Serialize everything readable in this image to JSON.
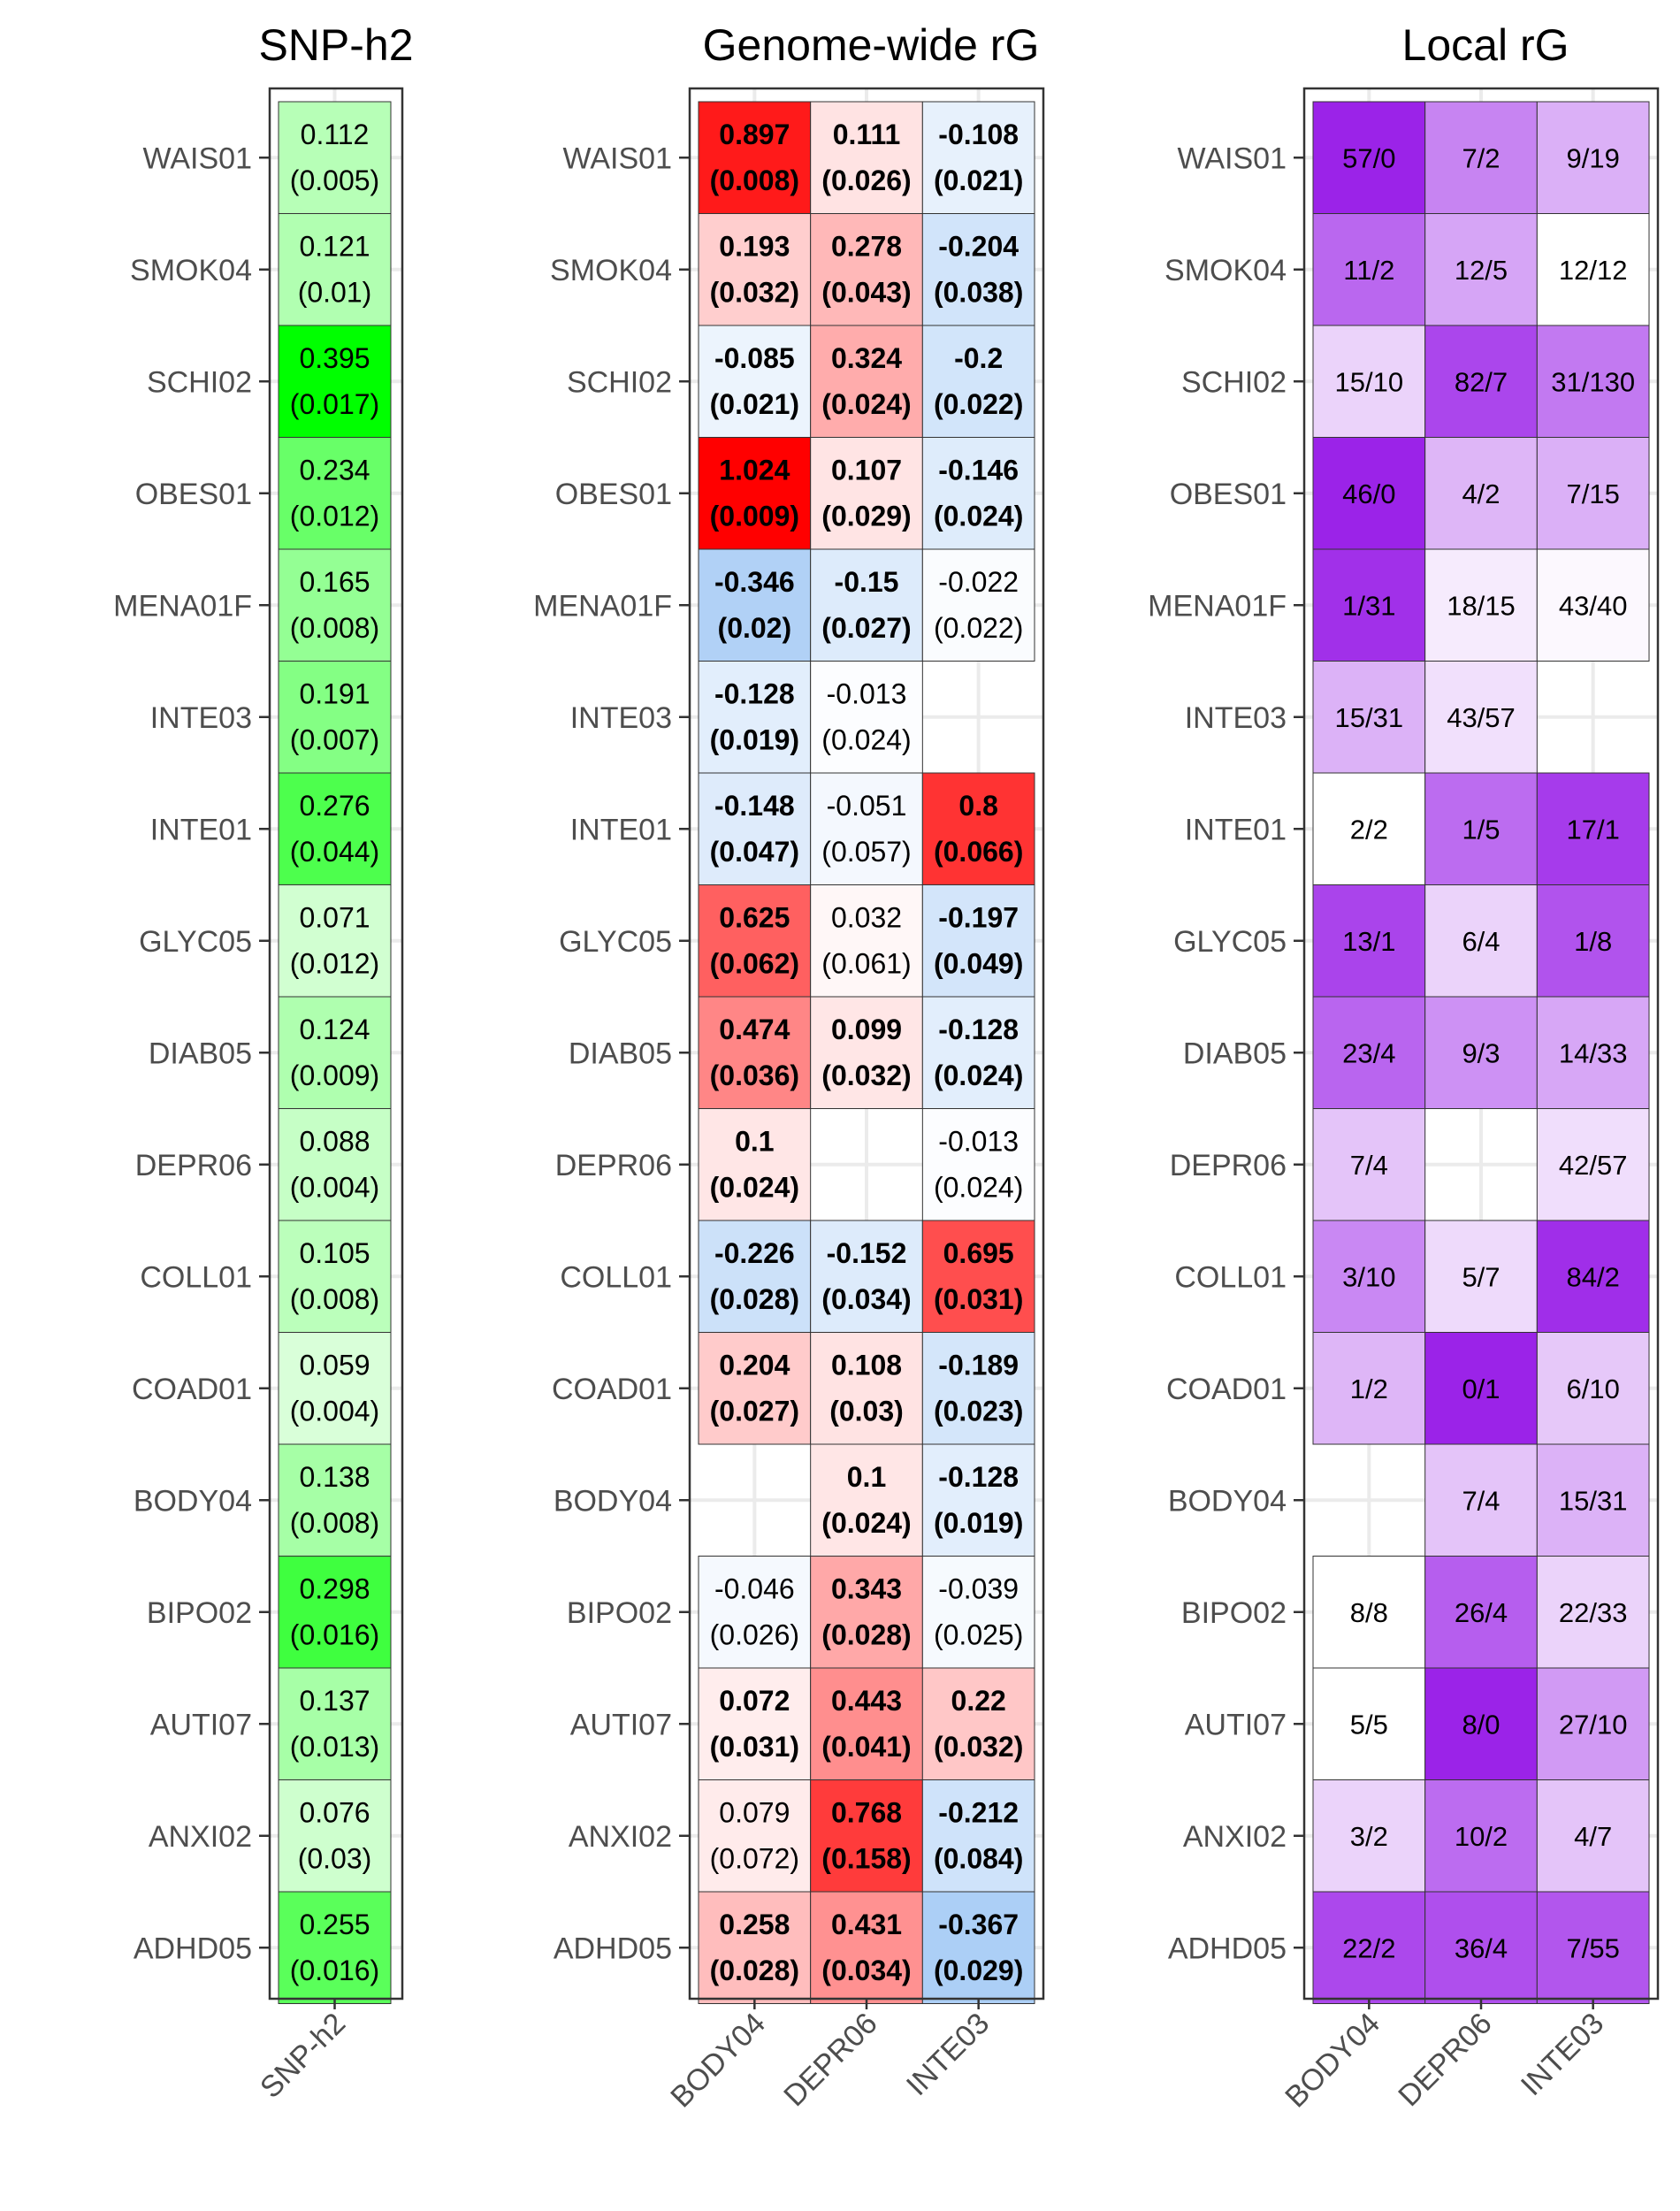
{
  "chart_data": [
    {
      "type": "heatmap",
      "title": "SNP-h2",
      "rows": [
        "WAIS01",
        "SMOK04",
        "SCHI02",
        "OBES01",
        "MENA01F",
        "INTE03",
        "INTE01",
        "GLYC05",
        "DIAB05",
        "DEPR06",
        "COLL01",
        "COAD01",
        "BODY04",
        "BIPO02",
        "AUTI07",
        "ANXI02",
        "ADHD05"
      ],
      "columns": [
        "SNP-h2"
      ],
      "values": [
        [
          0.112
        ],
        [
          0.121
        ],
        [
          0.395
        ],
        [
          0.234
        ],
        [
          0.165
        ],
        [
          0.191
        ],
        [
          0.276
        ],
        [
          0.071
        ],
        [
          0.124
        ],
        [
          0.088
        ],
        [
          0.105
        ],
        [
          0.059
        ],
        [
          0.138
        ],
        [
          0.298
        ],
        [
          0.137
        ],
        [
          0.076
        ],
        [
          0.255
        ]
      ],
      "se": [
        [
          0.005
        ],
        [
          0.01
        ],
        [
          0.017
        ],
        [
          0.012
        ],
        [
          0.008
        ],
        [
          0.007
        ],
        [
          0.044
        ],
        [
          0.012
        ],
        [
          0.009
        ],
        [
          0.004
        ],
        [
          0.008
        ],
        [
          0.004
        ],
        [
          0.008
        ],
        [
          0.016
        ],
        [
          0.013
        ],
        [
          0.03
        ],
        [
          0.016
        ]
      ],
      "value_labels": [
        [
          "0.112"
        ],
        [
          "0.121"
        ],
        [
          "0.395"
        ],
        [
          "0.234"
        ],
        [
          "0.165"
        ],
        [
          "0.191"
        ],
        [
          "0.276"
        ],
        [
          "0.071"
        ],
        [
          "0.124"
        ],
        [
          "0.088"
        ],
        [
          "0.105"
        ],
        [
          "0.059"
        ],
        [
          "0.138"
        ],
        [
          "0.298"
        ],
        [
          "0.137"
        ],
        [
          "0.076"
        ],
        [
          "0.255"
        ]
      ],
      "se_labels": [
        [
          "(0.005)"
        ],
        [
          "(0.01)"
        ],
        [
          "(0.017)"
        ],
        [
          "(0.012)"
        ],
        [
          "(0.008)"
        ],
        [
          "(0.007)"
        ],
        [
          "(0.044)"
        ],
        [
          "(0.012)"
        ],
        [
          "(0.009)"
        ],
        [
          "(0.004)"
        ],
        [
          "(0.008)"
        ],
        [
          "(0.004)"
        ],
        [
          "(0.008)"
        ],
        [
          "(0.016)"
        ],
        [
          "(0.013)"
        ],
        [
          "(0.03)"
        ],
        [
          "(0.016)"
        ]
      ],
      "color_low": "#ffffff",
      "color_high": "#00ff00"
    },
    {
      "type": "heatmap",
      "title": "Genome-wide rG",
      "rows": [
        "WAIS01",
        "SMOK04",
        "SCHI02",
        "OBES01",
        "MENA01F",
        "INTE03",
        "INTE01",
        "GLYC05",
        "DIAB05",
        "DEPR06",
        "COLL01",
        "COAD01",
        "BODY04",
        "BIPO02",
        "AUTI07",
        "ANXI02",
        "ADHD05"
      ],
      "columns": [
        "BODY04",
        "DEPR06",
        "INTE03"
      ],
      "values": [
        [
          0.897,
          0.111,
          -0.108
        ],
        [
          0.193,
          0.278,
          -0.204
        ],
        [
          -0.085,
          0.324,
          -0.2
        ],
        [
          1.024,
          0.107,
          -0.146
        ],
        [
          -0.346,
          -0.15,
          -0.022
        ],
        [
          -0.128,
          -0.013,
          null
        ],
        [
          -0.148,
          -0.051,
          0.8
        ],
        [
          0.625,
          0.032,
          -0.197
        ],
        [
          0.474,
          0.099,
          -0.128
        ],
        [
          0.1,
          null,
          -0.013
        ],
        [
          -0.226,
          -0.152,
          0.695
        ],
        [
          0.204,
          0.108,
          -0.189
        ],
        [
          null,
          0.1,
          -0.128
        ],
        [
          -0.046,
          0.343,
          -0.039
        ],
        [
          0.072,
          0.443,
          0.22
        ],
        [
          0.079,
          0.768,
          -0.212
        ],
        [
          0.258,
          0.431,
          -0.367
        ]
      ],
      "value_labels": [
        [
          "0.897",
          "0.111",
          "-0.108"
        ],
        [
          "0.193",
          "0.278",
          "-0.204"
        ],
        [
          "-0.085",
          "0.324",
          "-0.2"
        ],
        [
          "1.024",
          "0.107",
          "-0.146"
        ],
        [
          "-0.346",
          "-0.15",
          "-0.022"
        ],
        [
          "-0.128",
          "-0.013",
          ""
        ],
        [
          "-0.148",
          "-0.051",
          "0.8"
        ],
        [
          "0.625",
          "0.032",
          "-0.197"
        ],
        [
          "0.474",
          "0.099",
          "-0.128"
        ],
        [
          "0.1",
          "",
          "-0.013"
        ],
        [
          "-0.226",
          "-0.152",
          "0.695"
        ],
        [
          "0.204",
          "0.108",
          "-0.189"
        ],
        [
          "",
          "0.1",
          "-0.128"
        ],
        [
          "-0.046",
          "0.343",
          "-0.039"
        ],
        [
          "0.072",
          "0.443",
          "0.22"
        ],
        [
          "0.079",
          "0.768",
          "-0.212"
        ],
        [
          "0.258",
          "0.431",
          "-0.367"
        ]
      ],
      "se_labels": [
        [
          "(0.008)",
          "(0.026)",
          "(0.021)"
        ],
        [
          "(0.032)",
          "(0.043)",
          "(0.038)"
        ],
        [
          "(0.021)",
          "(0.024)",
          "(0.022)"
        ],
        [
          "(0.009)",
          "(0.029)",
          "(0.024)"
        ],
        [
          "(0.02)",
          "(0.027)",
          "(0.022)"
        ],
        [
          "(0.019)",
          "(0.024)",
          ""
        ],
        [
          "(0.047)",
          "(0.057)",
          "(0.066)"
        ],
        [
          "(0.062)",
          "(0.061)",
          "(0.049)"
        ],
        [
          "(0.036)",
          "(0.032)",
          "(0.024)"
        ],
        [
          "(0.024)",
          "",
          "(0.024)"
        ],
        [
          "(0.028)",
          "(0.034)",
          "(0.031)"
        ],
        [
          "(0.027)",
          "(0.03)",
          "(0.023)"
        ],
        [
          "",
          "(0.024)",
          "(0.019)"
        ],
        [
          "(0.026)",
          "(0.028)",
          "(0.025)"
        ],
        [
          "(0.031)",
          "(0.041)",
          "(0.032)"
        ],
        [
          "(0.072)",
          "(0.158)",
          "(0.084)"
        ],
        [
          "(0.028)",
          "(0.034)",
          "(0.029)"
        ]
      ],
      "significant": [
        [
          true,
          true,
          true
        ],
        [
          true,
          true,
          true
        ],
        [
          true,
          true,
          true
        ],
        [
          true,
          true,
          true
        ],
        [
          true,
          true,
          false
        ],
        [
          true,
          false,
          false
        ],
        [
          true,
          false,
          true
        ],
        [
          true,
          false,
          true
        ],
        [
          true,
          true,
          true
        ],
        [
          true,
          false,
          false
        ],
        [
          true,
          true,
          true
        ],
        [
          true,
          true,
          true
        ],
        [
          false,
          true,
          true
        ],
        [
          false,
          true,
          false
        ],
        [
          true,
          true,
          true
        ],
        [
          false,
          true,
          true
        ],
        [
          true,
          true,
          true
        ]
      ],
      "color_negative": "#1e7be6",
      "color_zero": "#ffffff",
      "color_positive": "#ff0000",
      "scale_limit": 1
    },
    {
      "type": "heatmap",
      "title": "Local rG",
      "rows": [
        "WAIS01",
        "SMOK04",
        "SCHI02",
        "OBES01",
        "MENA01F",
        "INTE03",
        "INTE01",
        "GLYC05",
        "DIAB05",
        "DEPR06",
        "COLL01",
        "COAD01",
        "BODY04",
        "BIPO02",
        "AUTI07",
        "ANXI02",
        "ADHD05"
      ],
      "columns": [
        "BODY04",
        "DEPR06",
        "INTE03"
      ],
      "labels": [
        [
          "57/0",
          "7/2",
          "9/19"
        ],
        [
          "11/2",
          "12/5",
          "12/12"
        ],
        [
          "15/10",
          "82/7",
          "31/130"
        ],
        [
          "46/0",
          "4/2",
          "7/15"
        ],
        [
          "1/31",
          "18/15",
          "43/40"
        ],
        [
          "15/31",
          "43/57",
          ""
        ],
        [
          "2/2",
          "1/5",
          "17/1"
        ],
        [
          "13/1",
          "6/4",
          "1/8"
        ],
        [
          "23/4",
          "9/3",
          "14/33"
        ],
        [
          "7/4",
          "",
          "42/57"
        ],
        [
          "3/10",
          "5/7",
          "84/2"
        ],
        [
          "1/2",
          "0/1",
          "6/10"
        ],
        [
          "",
          "7/4",
          "15/31"
        ],
        [
          "8/8",
          "26/4",
          "22/33"
        ],
        [
          "5/5",
          "8/0",
          "27/10"
        ],
        [
          "3/2",
          "10/2",
          "4/7"
        ],
        [
          "22/2",
          "36/4",
          "7/55"
        ]
      ],
      "values": [
        [
          1.0,
          0.56,
          0.36
        ],
        [
          0.69,
          0.41,
          0.0
        ],
        [
          0.2,
          0.84,
          0.61
        ],
        [
          1.0,
          0.33,
          0.36
        ],
        [
          0.94,
          0.09,
          0.03
        ],
        [
          0.35,
          0.14,
          null
        ],
        [
          0.0,
          0.67,
          0.89
        ],
        [
          0.85,
          0.2,
          0.78
        ],
        [
          0.7,
          0.5,
          0.4
        ],
        [
          0.27,
          null,
          0.15
        ],
        [
          0.54,
          0.17,
          0.95
        ],
        [
          0.33,
          1.0,
          0.25
        ],
        [
          null,
          0.27,
          0.35
        ],
        [
          0.0,
          0.73,
          0.2
        ],
        [
          0.0,
          1.0,
          0.46
        ],
        [
          0.2,
          0.67,
          0.27
        ],
        [
          0.83,
          0.8,
          0.77
        ]
      ],
      "color_low": "#ffffff",
      "color_high": "#9b23e8"
    }
  ]
}
